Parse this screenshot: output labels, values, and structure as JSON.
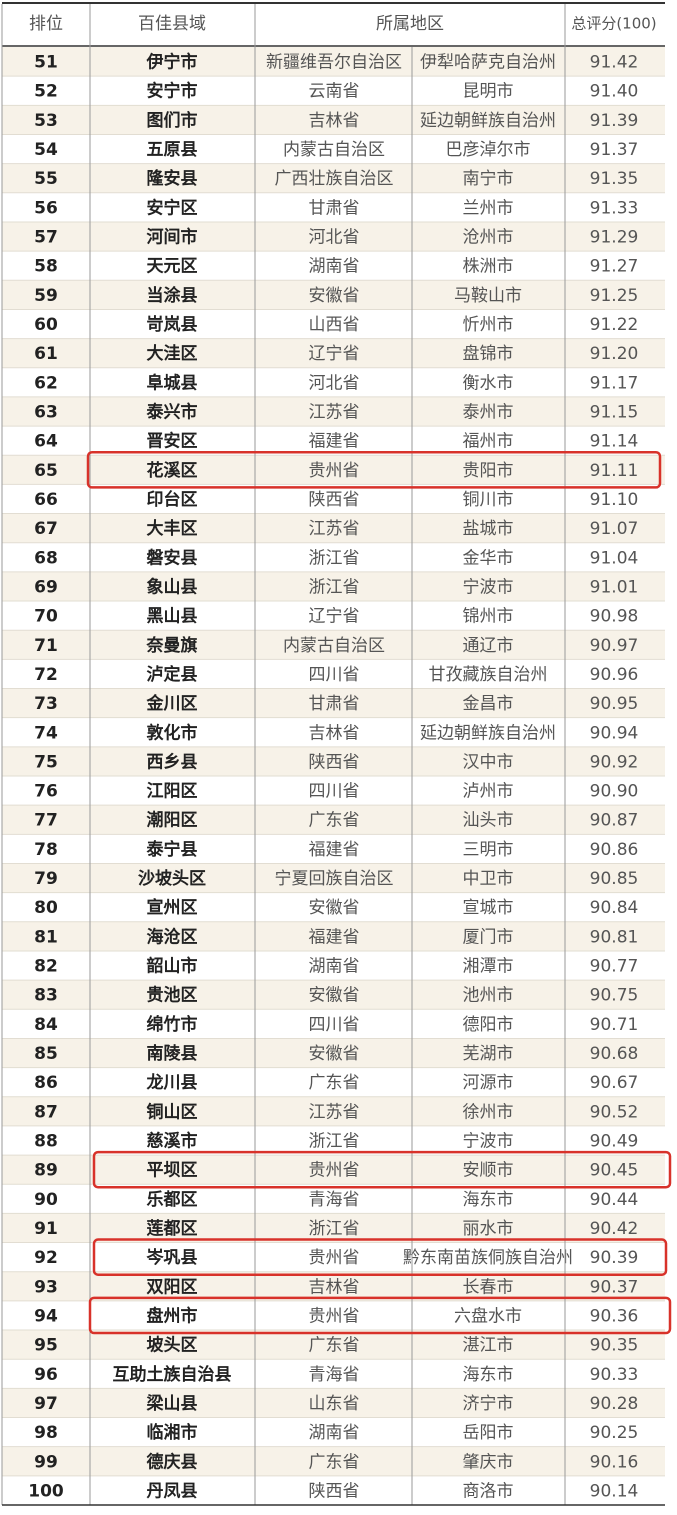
{
  "table": {
    "header": [
      "排位",
      "百佳县域",
      "所属地区",
      "总评分(100)"
    ],
    "rows": [
      [
        51,
        "伊宁市",
        "新疆维吾尔自治区",
        "伊犁哈萨克自治州",
        "91.42"
      ],
      [
        52,
        "安宁市",
        "云南省",
        "昆明市",
        "91.40"
      ],
      [
        53,
        "图们市",
        "吉林省",
        "延边朝鲜族自治州",
        "91.39"
      ],
      [
        54,
        "五原县",
        "内蒙古自治区",
        "巴彦淖尔市",
        "91.37"
      ],
      [
        55,
        "隆安县",
        "广西壮族自治区",
        "南宁市",
        "91.35"
      ],
      [
        56,
        "安宁区",
        "甘肃省",
        "兰州市",
        "91.33"
      ],
      [
        57,
        "河间市",
        "河北省",
        "沧州市",
        "91.29"
      ],
      [
        58,
        "天元区",
        "湖南省",
        "株洲市",
        "91.27"
      ],
      [
        59,
        "当涂县",
        "安徽省",
        "马鞍山市",
        "91.25"
      ],
      [
        60,
        "岢岚县",
        "山西省",
        "忻州市",
        "91.22"
      ],
      [
        61,
        "大洼区",
        "辽宁省",
        "盘锦市",
        "91.20"
      ],
      [
        62,
        "阜城县",
        "河北省",
        "衡水市",
        "91.17"
      ],
      [
        63,
        "泰兴市",
        "江苏省",
        "泰州市",
        "91.15"
      ],
      [
        64,
        "晋安区",
        "福建省",
        "福州市",
        "91.14"
      ],
      [
        65,
        "花溪区",
        "贵州省",
        "贵阳市",
        "91.11"
      ],
      [
        66,
        "印台区",
        "陕西省",
        "铜川市",
        "91.10"
      ],
      [
        67,
        "大丰区",
        "江苏省",
        "盐城市",
        "91.07"
      ],
      [
        68,
        "磐安县",
        "浙江省",
        "金华市",
        "91.04"
      ],
      [
        69,
        "象山县",
        "浙江省",
        "宁波市",
        "91.01"
      ],
      [
        70,
        "黑山县",
        "辽宁省",
        "锦州市",
        "90.98"
      ],
      [
        71,
        "奈曼旗",
        "内蒙古自治区",
        "通辽市",
        "90.97"
      ],
      [
        72,
        "泸定县",
        "四川省",
        "甘孜藏族自治州",
        "90.96"
      ],
      [
        73,
        "金川区",
        "甘肃省",
        "金昌市",
        "90.95"
      ],
      [
        74,
        "敦化市",
        "吉林省",
        "延边朝鲜族自治州",
        "90.94"
      ],
      [
        75,
        "西乡县",
        "陕西省",
        "汉中市",
        "90.92"
      ],
      [
        76,
        "江阳区",
        "四川省",
        "泸州市",
        "90.90"
      ],
      [
        77,
        "潮阳区",
        "广东省",
        "汕头市",
        "90.87"
      ],
      [
        78,
        "泰宁县",
        "福建省",
        "三明市",
        "90.86"
      ],
      [
        79,
        "沙坡头区",
        "宁夏回族自治区",
        "中卫市",
        "90.85"
      ],
      [
        80,
        "宣州区",
        "安徽省",
        "宣城市",
        "90.84"
      ],
      [
        81,
        "海沧区",
        "福建省",
        "厦门市",
        "90.81"
      ],
      [
        82,
        "韶山市",
        "湖南省",
        "湘潭市",
        "90.77"
      ],
      [
        83,
        "贵池区",
        "安徽省",
        "池州市",
        "90.75"
      ],
      [
        84,
        "绵竹市",
        "四川省",
        "德阳市",
        "90.71"
      ],
      [
        85,
        "南陵县",
        "安徽省",
        "芜湖市",
        "90.68"
      ],
      [
        86,
        "龙川县",
        "广东省",
        "河源市",
        "90.67"
      ],
      [
        87,
        "铜山区",
        "江苏省",
        "徐州市",
        "90.52"
      ],
      [
        88,
        "慈溪市",
        "浙江省",
        "宁波市",
        "90.49"
      ],
      [
        89,
        "平坝区",
        "贵州省",
        "安顺市",
        "90.45"
      ],
      [
        90,
        "乐都区",
        "青海省",
        "海东市",
        "90.44"
      ],
      [
        91,
        "莲都区",
        "浙江省",
        "丽水市",
        "90.42"
      ],
      [
        92,
        "岑巩县",
        "贵州省",
        "黔东南苗族侗族自治州",
        "90.39"
      ],
      [
        93,
        "双阳区",
        "吉林省",
        "长春市",
        "90.37"
      ],
      [
        94,
        "盘州市",
        "贵州省",
        "六盘水市",
        "90.36"
      ],
      [
        95,
        "坡头区",
        "广东省",
        "湛江市",
        "90.35"
      ],
      [
        96,
        "互助土族自治县",
        "青海省",
        "海东市",
        "90.33"
      ],
      [
        97,
        "梁山县",
        "山东省",
        "济宁市",
        "90.28"
      ],
      [
        98,
        "临湘市",
        "湖南省",
        "岳阳市",
        "90.25"
      ],
      [
        99,
        "德庆县",
        "广东省",
        "肇庆市",
        "90.16"
      ],
      [
        100,
        "丹凤县",
        "陕西省",
        "商洛市",
        "90.14"
      ]
    ]
  }
}
